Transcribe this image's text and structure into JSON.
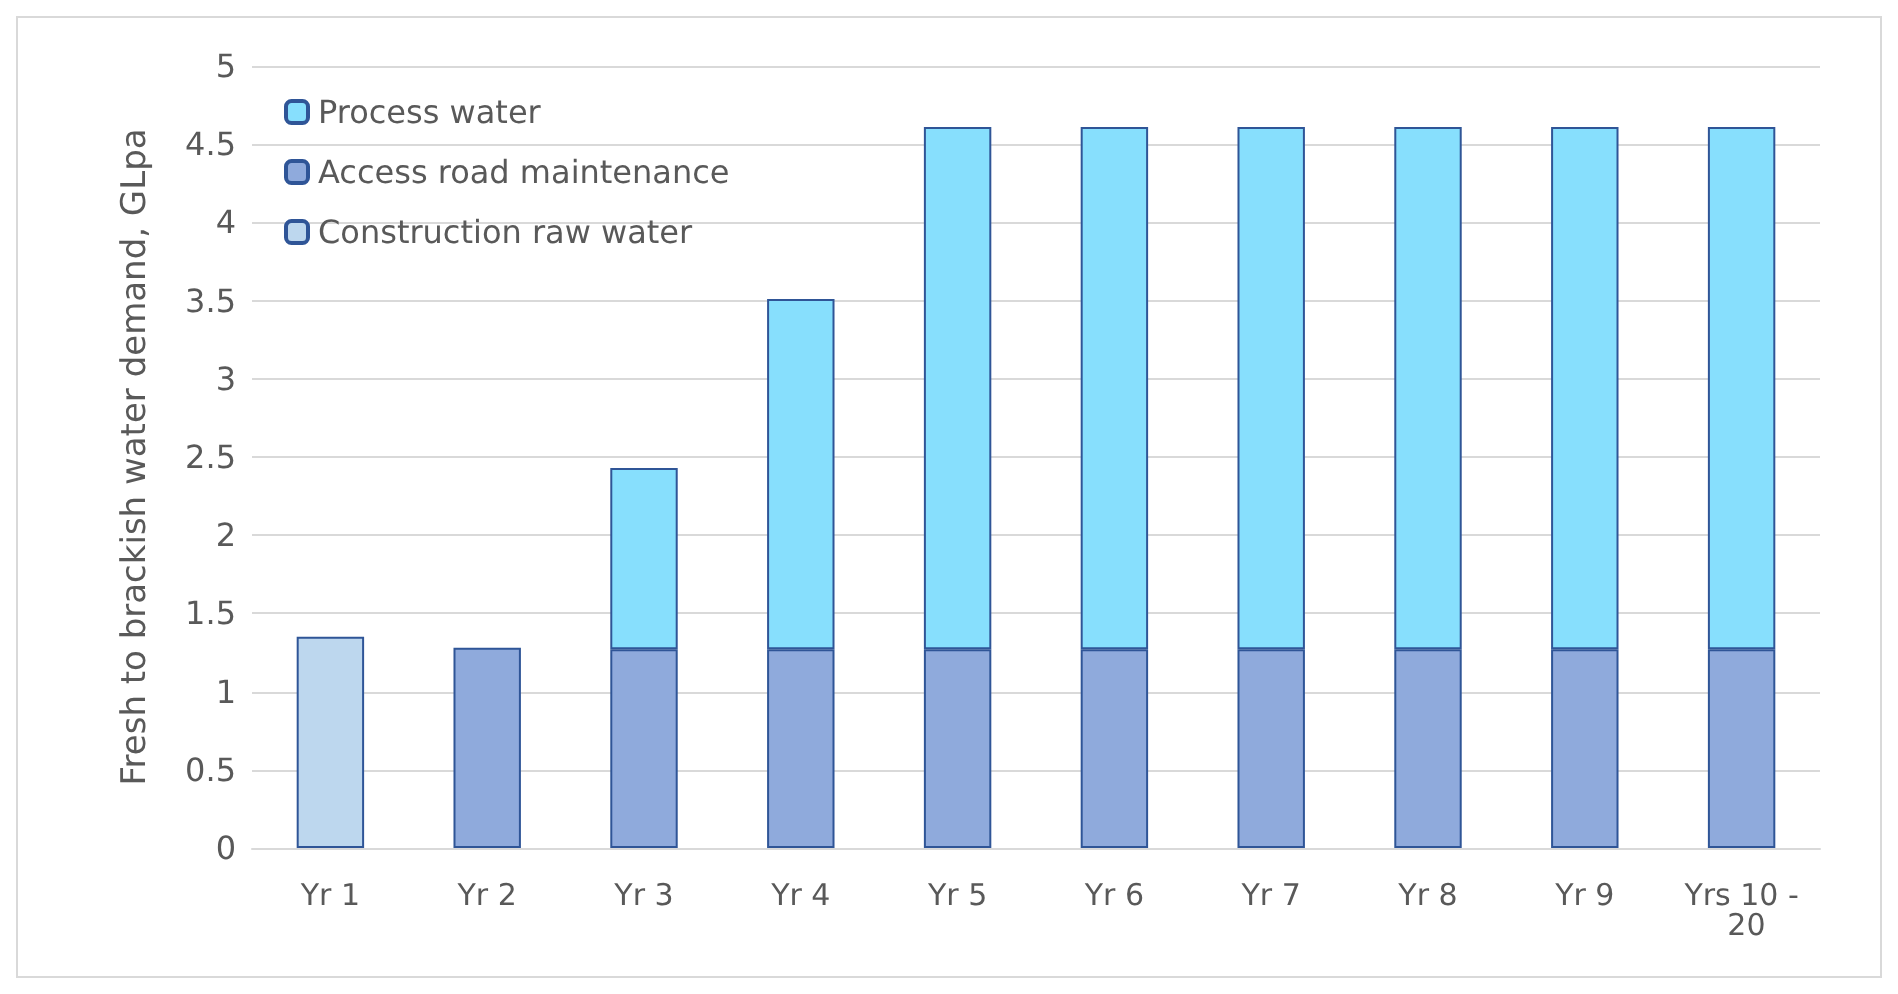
{
  "chart_data": {
    "type": "bar",
    "stacked": true,
    "ylabel": "Fresh to brackish water demand, GLpa",
    "categories": [
      "Yr 1",
      "Yr 2",
      "Yr 3",
      "Yr 4",
      "Yr 5",
      "Yr 6",
      "Yr 7",
      "Yr 8",
      "Yr 9",
      "Yrs 10 - 20"
    ],
    "series": [
      {
        "name": "Construction raw water",
        "color": "#bdd7ee",
        "values": [
          1.35,
          null,
          null,
          null,
          null,
          null,
          null,
          null,
          null,
          null
        ]
      },
      {
        "name": "Access road maintenance",
        "color": "#8faadc",
        "values": [
          null,
          1.28,
          1.27,
          1.27,
          1.27,
          1.27,
          1.27,
          1.27,
          1.27,
          1.27
        ]
      },
      {
        "name": "Process water",
        "color": "#87dffd",
        "values": [
          null,
          null,
          1.16,
          2.24,
          3.34,
          3.34,
          3.34,
          3.34,
          3.34,
          3.34
        ]
      }
    ],
    "ylim": [
      0,
      5
    ],
    "yticks": [
      0,
      0.5,
      1,
      1.5,
      2,
      2.5,
      3,
      3.5,
      4,
      4.5,
      5
    ],
    "grid": "y",
    "legend": "top left"
  }
}
